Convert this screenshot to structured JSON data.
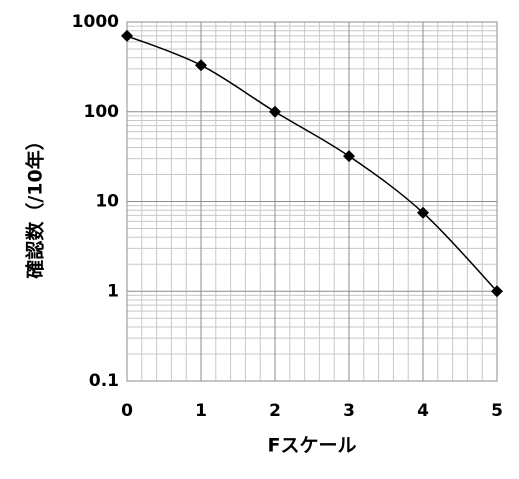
{
  "chart_data": {
    "type": "line",
    "x_label": "Fスケール",
    "y_label": "確認数（/10年）",
    "x": [
      0,
      1,
      2,
      3,
      4,
      5
    ],
    "values": [
      700,
      330,
      100,
      32,
      7.5,
      1
    ],
    "color": "#000000",
    "xlim": [
      0,
      5
    ],
    "xticks": [
      0,
      1,
      2,
      3,
      4,
      5
    ],
    "ylim": [
      0.1,
      1000
    ],
    "yticks": [
      0.1,
      1,
      10,
      100,
      1000
    ],
    "y_scale": "log",
    "grid": true,
    "minor_grid": true,
    "marker": "diamond"
  }
}
